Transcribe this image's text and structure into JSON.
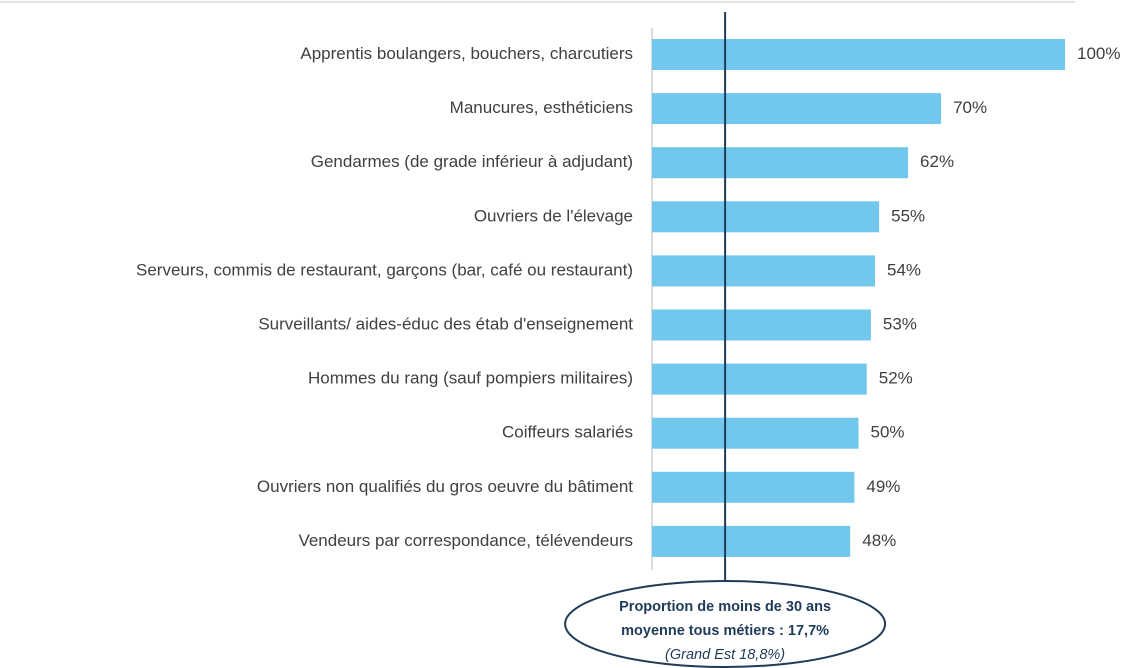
{
  "chart_data": {
    "type": "barh",
    "categories": [
      "Apprentis boulangers, bouchers, charcutiers",
      "Manucures, esthéticiens",
      "Gendarmes (de grade inférieur à adjudant)",
      "Ouvriers de l'élevage",
      "Serveurs, commis de restaurant, garçons (bar, café ou restaurant)",
      "Surveillants/ aides-éduc des étab d'enseignement",
      "Hommes du rang (sauf pompiers militaires)",
      "Coiffeurs salariés",
      "Ouvriers non qualifiés du gros oeuvre du bâtiment",
      "Vendeurs par correspondance, télévendeurs"
    ],
    "values": [
      100,
      70,
      62,
      55,
      54,
      53,
      52,
      50,
      49,
      48
    ],
    "value_labels": [
      "100%",
      "70%",
      "62%",
      "55%",
      "54%",
      "53%",
      "52%",
      "50%",
      "49%",
      "48%"
    ],
    "color": "#71c7ec",
    "xlim": [
      0,
      100
    ],
    "reference_line": {
      "value": 17.7,
      "color": "#1f3b5a"
    },
    "annotation": [
      "Proportion de moins de 30 ans",
      "moyenne tous métiers : 17,7%",
      "(Grand Est 18,8%)"
    ]
  }
}
